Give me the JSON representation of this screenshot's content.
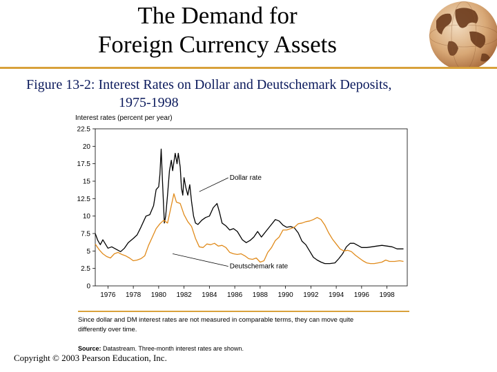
{
  "slide": {
    "title_line1": "The Demand for",
    "title_line2": "Foreign Currency Assets",
    "caption_figure": "Figure 13-2",
    "caption_text": ": Interest Rates on Dollar and Deutschemark Deposits,",
    "caption_years": "1975-1998",
    "note_line1": "Since dollar and DM interest rates are not measured in comparable terms, they can move quite",
    "note_line2": "differently over time.",
    "source_label": "Source:",
    "source_text": " Datastream. Three-month interest rates are shown.",
    "copyright": "Copyright © 2003 Pearson Education, Inc.",
    "colors": {
      "accent": "#d8a13a",
      "caption": "#0b1a5c",
      "dm_line": "#e08a1a",
      "dollar_line": "#000000"
    }
  },
  "chart_data": {
    "type": "line",
    "ylabel": "Interest rates (percent per year)",
    "xlabel": "",
    "ylim": [
      0,
      22.5
    ],
    "xlim": [
      1975,
      1999.6
    ],
    "yticks": [
      "0",
      "2.5",
      "5",
      "7.5",
      "10",
      "12.5",
      "15",
      "17.5",
      "20",
      "22.5"
    ],
    "xticks": [
      "1976",
      "1978",
      "1980",
      "1982",
      "1984",
      "1986",
      "1988",
      "1990",
      "1992",
      "1994",
      "1996",
      "1998"
    ],
    "annotations": [
      {
        "text": "Dollar rate",
        "series": "dollar",
        "at": [
          1985.6,
          15.2
        ]
      },
      {
        "text": "Deutschemark rate",
        "series": "dm",
        "at": [
          1985.6,
          2.5
        ]
      }
    ],
    "series": [
      {
        "name": "Dollar rate",
        "key": "dollar",
        "color": "#000000",
        "points": [
          [
            1975.0,
            7.5
          ],
          [
            1975.2,
            6.5
          ],
          [
            1975.4,
            5.9
          ],
          [
            1975.6,
            6.6
          ],
          [
            1975.8,
            6.0
          ],
          [
            1976.0,
            5.4
          ],
          [
            1976.3,
            5.6
          ],
          [
            1976.6,
            5.3
          ],
          [
            1977.0,
            4.9
          ],
          [
            1977.3,
            5.4
          ],
          [
            1977.6,
            6.2
          ],
          [
            1978.0,
            6.8
          ],
          [
            1978.3,
            7.3
          ],
          [
            1978.6,
            8.4
          ],
          [
            1979.0,
            10.0
          ],
          [
            1979.3,
            10.2
          ],
          [
            1979.6,
            11.5
          ],
          [
            1979.8,
            13.8
          ],
          [
            1980.0,
            14.2
          ],
          [
            1980.1,
            16.0
          ],
          [
            1980.2,
            19.6
          ],
          [
            1980.3,
            15.0
          ],
          [
            1980.45,
            9.0
          ],
          [
            1980.55,
            10.0
          ],
          [
            1980.7,
            13.0
          ],
          [
            1980.85,
            16.5
          ],
          [
            1981.0,
            18.0
          ],
          [
            1981.1,
            16.5
          ],
          [
            1981.3,
            19.0
          ],
          [
            1981.45,
            17.5
          ],
          [
            1981.55,
            19.0
          ],
          [
            1981.7,
            17.0
          ],
          [
            1981.8,
            14.0
          ],
          [
            1981.9,
            13.0
          ],
          [
            1982.0,
            15.5
          ],
          [
            1982.15,
            14.0
          ],
          [
            1982.3,
            13.0
          ],
          [
            1982.45,
            14.5
          ],
          [
            1982.6,
            12.0
          ],
          [
            1982.75,
            10.0
          ],
          [
            1982.9,
            9.0
          ],
          [
            1983.1,
            8.8
          ],
          [
            1983.4,
            9.4
          ],
          [
            1983.7,
            9.8
          ],
          [
            1984.0,
            10.0
          ],
          [
            1984.3,
            11.2
          ],
          [
            1984.6,
            11.8
          ],
          [
            1984.8,
            10.5
          ],
          [
            1985.0,
            9.0
          ],
          [
            1985.3,
            8.6
          ],
          [
            1985.6,
            8.0
          ],
          [
            1985.9,
            8.2
          ],
          [
            1986.2,
            7.8
          ],
          [
            1986.6,
            6.6
          ],
          [
            1986.9,
            6.2
          ],
          [
            1987.2,
            6.5
          ],
          [
            1987.5,
            7.0
          ],
          [
            1987.8,
            7.8
          ],
          [
            1988.1,
            7.0
          ],
          [
            1988.5,
            7.9
          ],
          [
            1988.8,
            8.6
          ],
          [
            1989.2,
            9.5
          ],
          [
            1989.5,
            9.3
          ],
          [
            1989.8,
            8.7
          ],
          [
            1990.1,
            8.4
          ],
          [
            1990.4,
            8.5
          ],
          [
            1990.7,
            8.3
          ],
          [
            1991.0,
            7.6
          ],
          [
            1991.3,
            6.4
          ],
          [
            1991.6,
            5.9
          ],
          [
            1991.9,
            5.0
          ],
          [
            1992.2,
            4.1
          ],
          [
            1992.5,
            3.7
          ],
          [
            1992.8,
            3.4
          ],
          [
            1993.1,
            3.2
          ],
          [
            1993.5,
            3.2
          ],
          [
            1993.9,
            3.3
          ],
          [
            1994.2,
            3.9
          ],
          [
            1994.5,
            4.6
          ],
          [
            1994.8,
            5.6
          ],
          [
            1995.1,
            6.1
          ],
          [
            1995.4,
            6.1
          ],
          [
            1995.7,
            5.8
          ],
          [
            1996.0,
            5.5
          ],
          [
            1996.4,
            5.5
          ],
          [
            1996.8,
            5.6
          ],
          [
            1997.2,
            5.7
          ],
          [
            1997.6,
            5.8
          ],
          [
            1998.0,
            5.7
          ],
          [
            1998.4,
            5.6
          ],
          [
            1998.8,
            5.3
          ],
          [
            1999.3,
            5.3
          ]
        ]
      },
      {
        "name": "Deutschemark rate",
        "key": "dm",
        "color": "#e08a1a",
        "points": [
          [
            1975.0,
            6.0
          ],
          [
            1975.3,
            5.2
          ],
          [
            1975.6,
            4.6
          ],
          [
            1975.9,
            4.2
          ],
          [
            1976.2,
            4.0
          ],
          [
            1976.5,
            4.6
          ],
          [
            1976.8,
            4.8
          ],
          [
            1977.1,
            4.5
          ],
          [
            1977.4,
            4.3
          ],
          [
            1977.7,
            4.0
          ],
          [
            1978.0,
            3.6
          ],
          [
            1978.3,
            3.7
          ],
          [
            1978.6,
            3.9
          ],
          [
            1978.9,
            4.3
          ],
          [
            1979.2,
            5.8
          ],
          [
            1979.5,
            7.0
          ],
          [
            1979.8,
            8.2
          ],
          [
            1980.1,
            8.9
          ],
          [
            1980.4,
            9.4
          ],
          [
            1980.7,
            9.0
          ],
          [
            1981.0,
            11.5
          ],
          [
            1981.2,
            13.2
          ],
          [
            1981.4,
            12.0
          ],
          [
            1981.7,
            11.8
          ],
          [
            1982.0,
            10.2
          ],
          [
            1982.3,
            9.2
          ],
          [
            1982.6,
            8.5
          ],
          [
            1982.9,
            6.8
          ],
          [
            1983.2,
            5.6
          ],
          [
            1983.5,
            5.5
          ],
          [
            1983.8,
            6.0
          ],
          [
            1984.1,
            5.9
          ],
          [
            1984.4,
            6.1
          ],
          [
            1984.7,
            5.7
          ],
          [
            1985.0,
            5.8
          ],
          [
            1985.3,
            5.5
          ],
          [
            1985.6,
            4.8
          ],
          [
            1985.9,
            4.6
          ],
          [
            1986.2,
            4.5
          ],
          [
            1986.5,
            4.6
          ],
          [
            1986.8,
            4.3
          ],
          [
            1987.1,
            3.9
          ],
          [
            1987.4,
            3.8
          ],
          [
            1987.7,
            4.0
          ],
          [
            1988.0,
            3.4
          ],
          [
            1988.3,
            3.6
          ],
          [
            1988.6,
            4.8
          ],
          [
            1988.9,
            5.5
          ],
          [
            1989.2,
            6.5
          ],
          [
            1989.5,
            7.0
          ],
          [
            1989.8,
            8.0
          ],
          [
            1990.1,
            8.0
          ],
          [
            1990.4,
            8.2
          ],
          [
            1990.7,
            8.4
          ],
          [
            1991.0,
            8.9
          ],
          [
            1991.3,
            9.0
          ],
          [
            1991.6,
            9.2
          ],
          [
            1991.9,
            9.3
          ],
          [
            1992.2,
            9.5
          ],
          [
            1992.5,
            9.8
          ],
          [
            1992.8,
            9.5
          ],
          [
            1993.1,
            8.7
          ],
          [
            1993.4,
            7.6
          ],
          [
            1993.7,
            6.7
          ],
          [
            1994.0,
            6.0
          ],
          [
            1994.3,
            5.3
          ],
          [
            1994.6,
            5.0
          ],
          [
            1994.9,
            5.1
          ],
          [
            1995.2,
            4.9
          ],
          [
            1995.5,
            4.4
          ],
          [
            1995.8,
            4.0
          ],
          [
            1996.1,
            3.6
          ],
          [
            1996.4,
            3.3
          ],
          [
            1996.7,
            3.2
          ],
          [
            1997.0,
            3.2
          ],
          [
            1997.3,
            3.3
          ],
          [
            1997.6,
            3.4
          ],
          [
            1997.9,
            3.7
          ],
          [
            1998.2,
            3.5
          ],
          [
            1998.6,
            3.5
          ],
          [
            1999.0,
            3.6
          ],
          [
            1999.3,
            3.5
          ]
        ]
      }
    ]
  }
}
